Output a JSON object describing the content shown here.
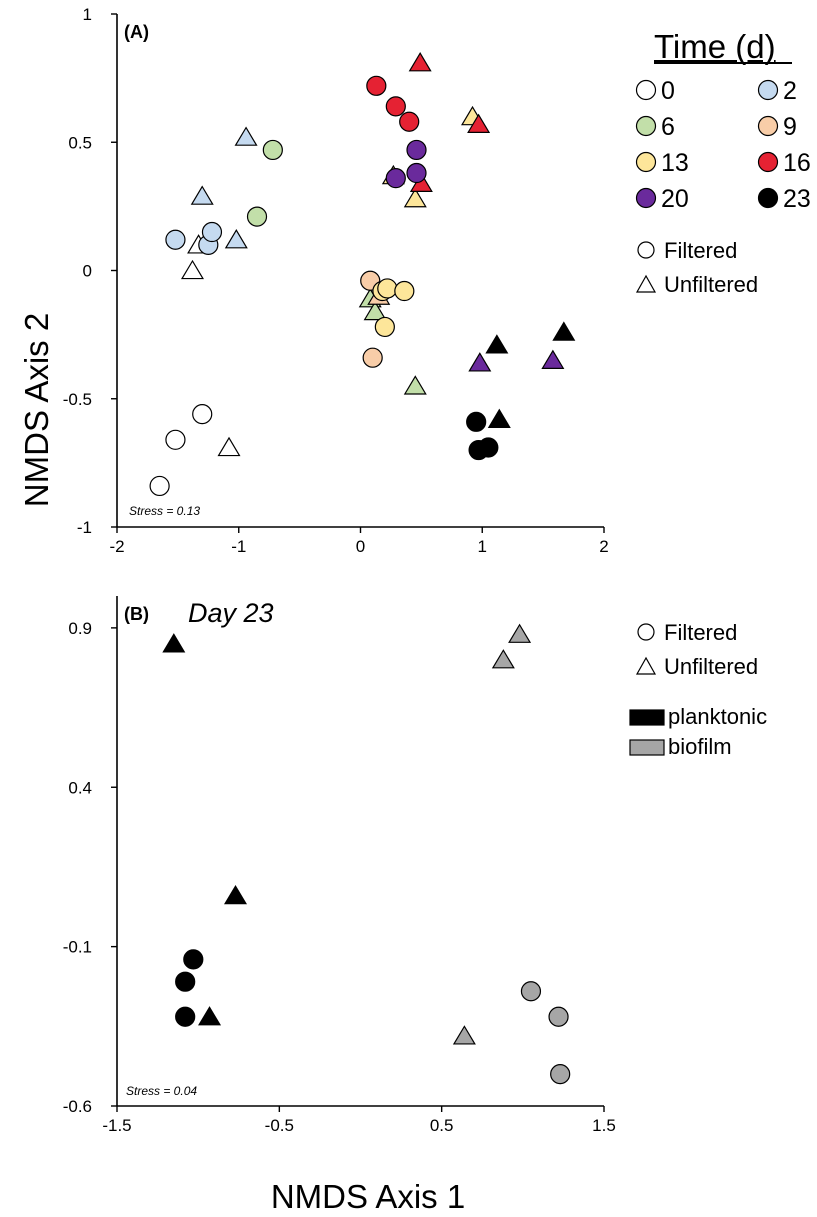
{
  "figure": {
    "y_axis_title": "NMDS Axis 2",
    "x_axis_title": "NMDS Axis 1"
  },
  "colors": {
    "0": "#ffffff",
    "2": "#c5daf0",
    "6": "#c2dfa9",
    "9": "#f8cda8",
    "13": "#fde69a",
    "16": "#e52233",
    "20": "#6a2a9c",
    "23": "#000000",
    "planktonic": "#000000",
    "biofilm": "#a6a6a6"
  },
  "chart_data": [
    {
      "type": "scatter",
      "panel_label": "(A)",
      "stress": "Stress = 0.13",
      "xlim": [
        -2,
        2
      ],
      "ylim": [
        -1,
        1
      ],
      "x_ticks": [
        "-2",
        "-1",
        "0",
        "1",
        "2"
      ],
      "y_ticks": [
        "1",
        "0.5",
        "0",
        "-0.5",
        "-1"
      ],
      "grid": false,
      "legend": {
        "title": "Time (d)",
        "placement": "top-right",
        "time_entries": [
          "0",
          "2",
          "6",
          "9",
          "13",
          "16",
          "20",
          "23"
        ],
        "shape_entries": [
          {
            "label": "Filtered",
            "shape": "circle"
          },
          {
            "label": "Unfiltered",
            "shape": "triangle"
          }
        ]
      },
      "points": [
        {
          "x": -1.65,
          "y": -0.84,
          "day": "0",
          "shape": "circle"
        },
        {
          "x": -1.52,
          "y": -0.66,
          "day": "0",
          "shape": "circle"
        },
        {
          "x": -1.3,
          "y": -0.56,
          "day": "0",
          "shape": "circle"
        },
        {
          "x": -1.08,
          "y": -0.69,
          "day": "0",
          "shape": "triangle"
        },
        {
          "x": -1.38,
          "y": 0.0,
          "day": "0",
          "shape": "triangle"
        },
        {
          "x": -1.33,
          "y": 0.1,
          "day": "0",
          "shape": "triangle"
        },
        {
          "x": -1.52,
          "y": 0.12,
          "day": "2",
          "shape": "circle"
        },
        {
          "x": -1.25,
          "y": 0.1,
          "day": "2",
          "shape": "circle"
        },
        {
          "x": -1.22,
          "y": 0.15,
          "day": "2",
          "shape": "circle"
        },
        {
          "x": -1.3,
          "y": 0.29,
          "day": "2",
          "shape": "triangle"
        },
        {
          "x": -1.02,
          "y": 0.12,
          "day": "2",
          "shape": "triangle"
        },
        {
          "x": -0.94,
          "y": 0.52,
          "day": "2",
          "shape": "triangle"
        },
        {
          "x": -0.72,
          "y": 0.47,
          "day": "6",
          "shape": "circle"
        },
        {
          "x": -0.85,
          "y": 0.21,
          "day": "6",
          "shape": "circle"
        },
        {
          "x": 0.08,
          "y": -0.11,
          "day": "6",
          "shape": "triangle"
        },
        {
          "x": 0.12,
          "y": -0.16,
          "day": "6",
          "shape": "triangle"
        },
        {
          "x": 0.45,
          "y": -0.45,
          "day": "6",
          "shape": "triangle"
        },
        {
          "x": 0.08,
          "y": -0.04,
          "day": "9",
          "shape": "circle"
        },
        {
          "x": 0.1,
          "y": -0.34,
          "day": "9",
          "shape": "circle"
        },
        {
          "x": 0.15,
          "y": -0.1,
          "day": "9",
          "shape": "triangle"
        },
        {
          "x": 0.18,
          "y": -0.08,
          "day": "13",
          "shape": "circle"
        },
        {
          "x": 0.22,
          "y": -0.07,
          "day": "13",
          "shape": "circle"
        },
        {
          "x": 0.2,
          "y": -0.22,
          "day": "13",
          "shape": "circle"
        },
        {
          "x": 0.36,
          "y": -0.08,
          "day": "13",
          "shape": "circle"
        },
        {
          "x": 0.45,
          "y": 0.28,
          "day": "13",
          "shape": "triangle"
        },
        {
          "x": 0.27,
          "y": 0.37,
          "day": "13",
          "shape": "triangle"
        },
        {
          "x": 0.92,
          "y": 0.6,
          "day": "13",
          "shape": "triangle"
        },
        {
          "x": 0.13,
          "y": 0.72,
          "day": "16",
          "shape": "circle"
        },
        {
          "x": 0.29,
          "y": 0.64,
          "day": "16",
          "shape": "circle"
        },
        {
          "x": 0.4,
          "y": 0.58,
          "day": "16",
          "shape": "circle"
        },
        {
          "x": 0.49,
          "y": 0.81,
          "day": "16",
          "shape": "triangle"
        },
        {
          "x": 0.97,
          "y": 0.57,
          "day": "16",
          "shape": "triangle"
        },
        {
          "x": 0.5,
          "y": 0.34,
          "day": "16",
          "shape": "triangle"
        },
        {
          "x": 0.46,
          "y": 0.47,
          "day": "20",
          "shape": "circle"
        },
        {
          "x": 0.46,
          "y": 0.38,
          "day": "20",
          "shape": "circle"
        },
        {
          "x": 0.29,
          "y": 0.36,
          "day": "20",
          "shape": "circle"
        },
        {
          "x": 0.98,
          "y": -0.36,
          "day": "20",
          "shape": "triangle"
        },
        {
          "x": 1.58,
          "y": -0.35,
          "day": "20",
          "shape": "triangle"
        },
        {
          "x": 0.95,
          "y": -0.59,
          "day": "23",
          "shape": "circle"
        },
        {
          "x": 0.97,
          "y": -0.7,
          "day": "23",
          "shape": "circle"
        },
        {
          "x": 1.05,
          "y": -0.69,
          "day": "23",
          "shape": "circle"
        },
        {
          "x": 1.14,
          "y": -0.58,
          "day": "23",
          "shape": "triangle"
        },
        {
          "x": 1.12,
          "y": -0.29,
          "day": "23",
          "shape": "triangle"
        },
        {
          "x": 1.67,
          "y": -0.24,
          "day": "23",
          "shape": "triangle"
        }
      ]
    },
    {
      "type": "scatter",
      "panel_label": "(B)",
      "title": "Day 23",
      "stress": "Stress = 0.04",
      "xlim": [
        -1.5,
        1.5
      ],
      "ylim": [
        -0.6,
        1.0
      ],
      "x_ticks": [
        "-1.5",
        "-0.5",
        "0.5",
        "1.5"
      ],
      "y_ticks": [
        "0.9",
        "0.4",
        "-0.1",
        "-0.6"
      ],
      "grid": false,
      "legend": {
        "placement": "top-right",
        "shape_entries": [
          {
            "label": "Filtered",
            "shape": "circle"
          },
          {
            "label": "Unfiltered",
            "shape": "triangle"
          }
        ],
        "type_entries": [
          {
            "label": "planktonic",
            "color": "#000000"
          },
          {
            "label": "biofilm",
            "color": "#a6a6a6"
          }
        ]
      },
      "points": [
        {
          "x": -1.15,
          "y": 0.85,
          "group": "planktonic",
          "shape": "triangle"
        },
        {
          "x": -0.77,
          "y": 0.06,
          "group": "planktonic",
          "shape": "triangle"
        },
        {
          "x": -1.03,
          "y": -0.14,
          "group": "planktonic",
          "shape": "circle"
        },
        {
          "x": -1.08,
          "y": -0.21,
          "group": "planktonic",
          "shape": "circle"
        },
        {
          "x": -1.08,
          "y": -0.32,
          "group": "planktonic",
          "shape": "circle"
        },
        {
          "x": -0.93,
          "y": -0.32,
          "group": "planktonic",
          "shape": "triangle"
        },
        {
          "x": 0.88,
          "y": 0.8,
          "group": "biofilm",
          "shape": "triangle"
        },
        {
          "x": 0.98,
          "y": 0.88,
          "group": "biofilm",
          "shape": "triangle"
        },
        {
          "x": 0.64,
          "y": -0.38,
          "group": "biofilm",
          "shape": "triangle"
        },
        {
          "x": 1.05,
          "y": -0.24,
          "group": "biofilm",
          "shape": "circle"
        },
        {
          "x": 1.22,
          "y": -0.32,
          "group": "biofilm",
          "shape": "circle"
        },
        {
          "x": 1.23,
          "y": -0.5,
          "group": "biofilm",
          "shape": "circle"
        }
      ]
    }
  ]
}
